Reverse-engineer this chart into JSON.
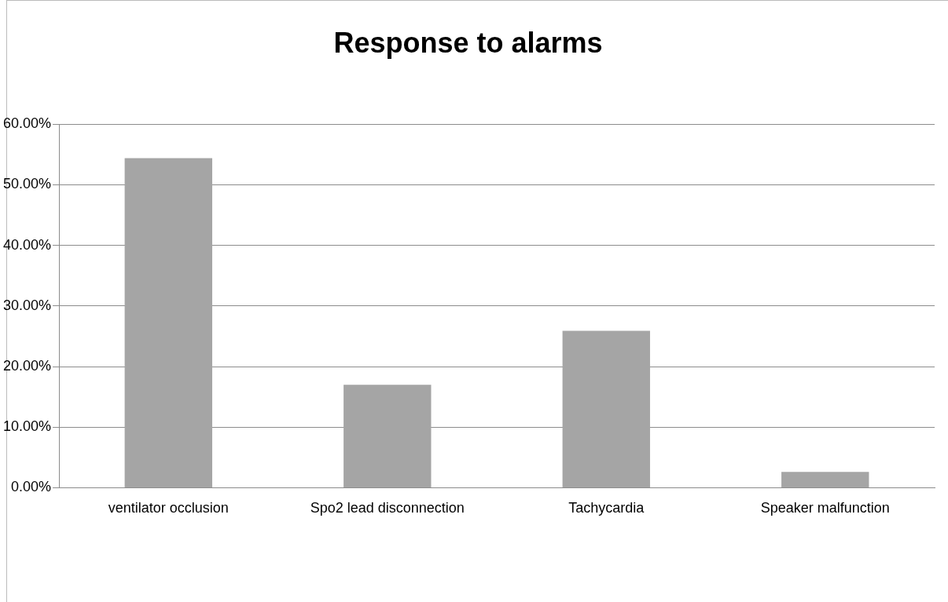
{
  "chart_data": {
    "type": "bar",
    "title": "Response to alarms",
    "categories": [
      "ventilator occlusion",
      "Spo2 lead disconnection",
      "Tachycardia",
      "Speaker malfunction"
    ],
    "values": [
      54.4,
      17.0,
      25.9,
      2.6
    ],
    "color": "#a5a5a5",
    "ylim": [
      0,
      60
    ],
    "yticks": [
      {
        "value": 0,
        "label": "0.00%"
      },
      {
        "value": 10,
        "label": "10.00%"
      },
      {
        "value": 20,
        "label": "20.00%"
      },
      {
        "value": 30,
        "label": "30.00%"
      },
      {
        "value": 40,
        "label": "40.00%"
      },
      {
        "value": 50,
        "label": "50.00%"
      },
      {
        "value": 60,
        "label": "60.00%"
      }
    ],
    "grid": "y",
    "legend": false
  }
}
